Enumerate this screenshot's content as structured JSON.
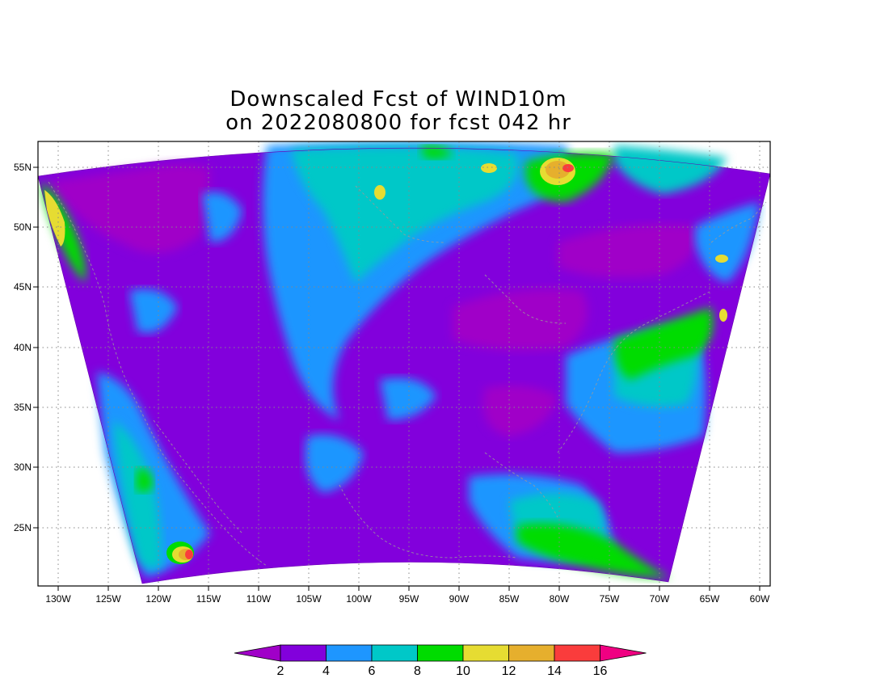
{
  "title": {
    "line1": "Downscaled Fcst of WIND10m",
    "line2": "on 2022080800 for fcst 042 hr"
  },
  "map": {
    "lon_ticks": [
      "130W",
      "125W",
      "120W",
      "115W",
      "110W",
      "105W",
      "100W",
      "95W",
      "90W",
      "85W",
      "80W",
      "75W",
      "70W",
      "65W",
      "60W"
    ],
    "lat_ticks": [
      "55N",
      "50N",
      "45N",
      "40N",
      "35N",
      "30N",
      "25N"
    ],
    "grid": "dotted",
    "field": "wind speed (10 m)"
  },
  "colorbar": {
    "labels": [
      "2",
      "4",
      "6",
      "8",
      "10",
      "12",
      "14",
      "16"
    ],
    "colors": [
      "#a000c8",
      "#8200dc",
      "#1e96ff",
      "#00c8c8",
      "#00dc00",
      "#e6dc32",
      "#e6af2d",
      "#fa3c3c",
      "#f00082"
    ],
    "extend": "both"
  }
}
